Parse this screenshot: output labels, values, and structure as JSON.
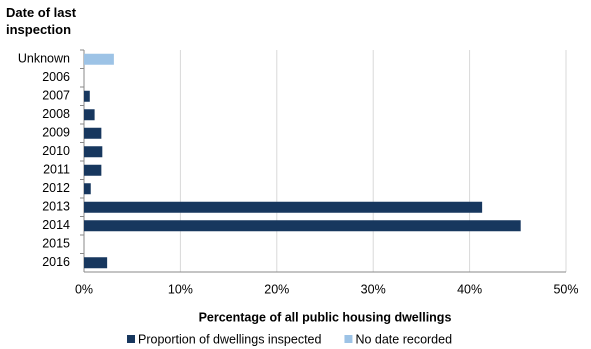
{
  "chart_data": {
    "type": "bar",
    "orientation": "horizontal",
    "y_axis_title": "Date of last inspection",
    "x_axis_title": "Percentage of all public housing dwellings",
    "categories": [
      "Unknown",
      "2006",
      "2007",
      "2008",
      "2009",
      "2010",
      "2011",
      "2012",
      "2013",
      "2014",
      "2015",
      "2016"
    ],
    "series": [
      {
        "name": "Proportion of dwellings inspected",
        "color": "#17375e",
        "values": [
          null,
          null,
          0.6,
          1.1,
          1.8,
          1.9,
          1.8,
          0.7,
          41.3,
          45.3,
          null,
          2.4
        ]
      },
      {
        "name": "No date recorded",
        "color": "#9dc3e6",
        "values": [
          3.1,
          null,
          null,
          null,
          null,
          null,
          null,
          null,
          null,
          null,
          null,
          null
        ]
      }
    ],
    "xlim": [
      0,
      50
    ],
    "xticks": [
      {
        "value": 0,
        "label": "0%"
      },
      {
        "value": 10,
        "label": "10%"
      },
      {
        "value": 20,
        "label": "20%"
      },
      {
        "value": 30,
        "label": "30%"
      },
      {
        "value": 40,
        "label": "40%"
      },
      {
        "value": 50,
        "label": "50%"
      }
    ],
    "grid": true
  }
}
